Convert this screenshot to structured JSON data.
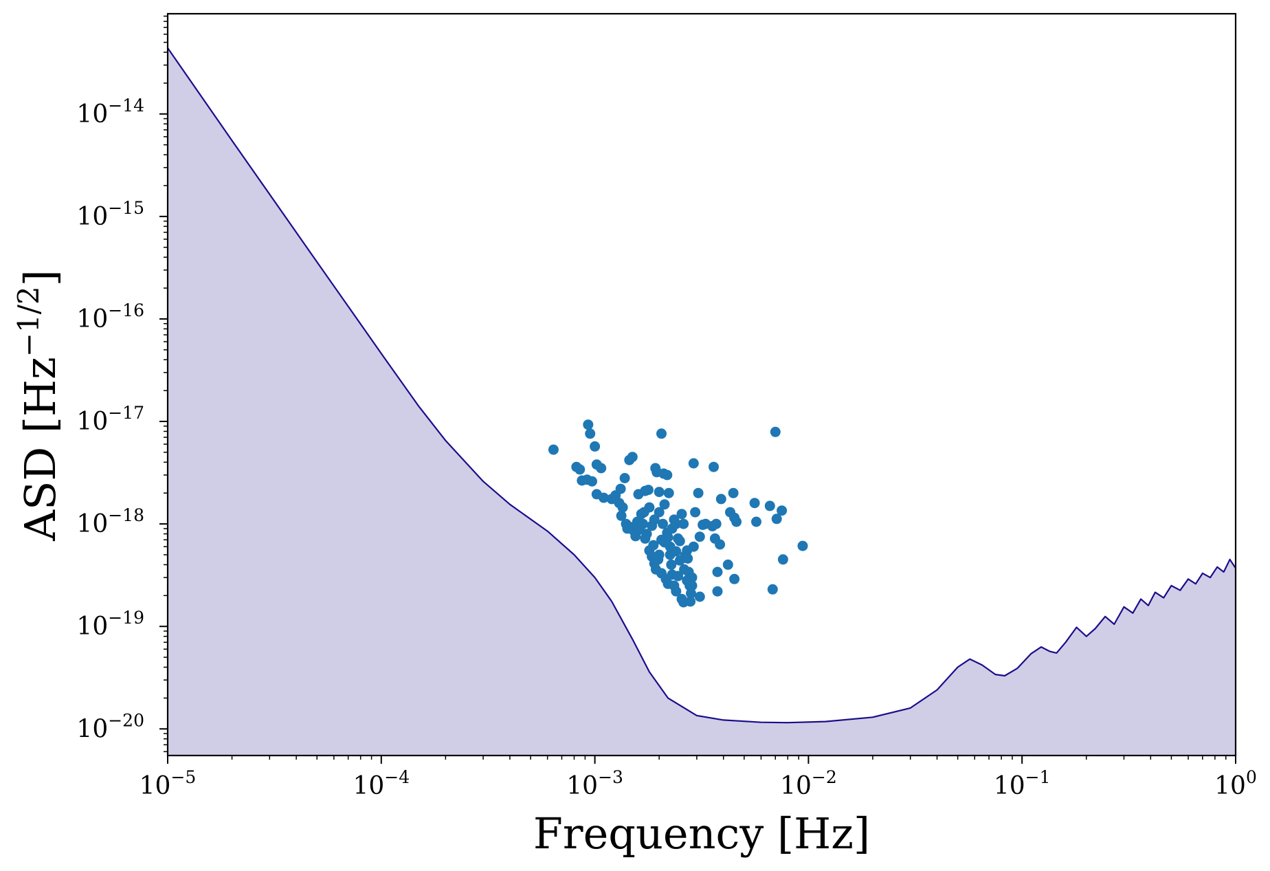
{
  "chart_data": {
    "type": "line+scatter",
    "xlabel": "Frequency [Hz]",
    "ylabel_base": "ASD [Hz",
    "ylabel_exp": "−1/2",
    "ylabel_close": "]",
    "xscale": "log",
    "yscale": "log",
    "xlim": [
      1e-05,
      1
    ],
    "ylim": [
      5.5e-21,
      9.5e-14
    ],
    "grid": false,
    "x_ticks": [
      {
        "base": "10",
        "exp": "−5"
      },
      {
        "base": "10",
        "exp": "−4"
      },
      {
        "base": "10",
        "exp": "−3"
      },
      {
        "base": "10",
        "exp": "−2"
      },
      {
        "base": "10",
        "exp": "−1"
      },
      {
        "base": "10",
        "exp": "0"
      }
    ],
    "y_ticks": [
      {
        "base": "10",
        "exp": "−20"
      },
      {
        "base": "10",
        "exp": "−19"
      },
      {
        "base": "10",
        "exp": "−18"
      },
      {
        "base": "10",
        "exp": "−17"
      },
      {
        "base": "10",
        "exp": "−16"
      },
      {
        "base": "10",
        "exp": "−15"
      },
      {
        "base": "10",
        "exp": "−14"
      }
    ],
    "curve": {
      "color": "#1a0d8c",
      "fill_color": "#d0cee6",
      "points": [
        [
          1e-05,
          4.4e-14
        ],
        [
          2e-05,
          5.5e-15
        ],
        [
          5e-05,
          3.6e-16
        ],
        [
          0.0001,
          4.6e-17
        ],
        [
          0.00015,
          1.4e-17
        ],
        [
          0.0002,
          6.5e-18
        ],
        [
          0.0003,
          2.6e-18
        ],
        [
          0.0004,
          1.55e-18
        ],
        [
          0.0006,
          8.5e-19
        ],
        [
          0.0008,
          5e-19
        ],
        [
          0.001,
          3e-19
        ],
        [
          0.0012,
          1.75e-19
        ],
        [
          0.0015,
          7.5e-20
        ],
        [
          0.0018,
          3.6e-20
        ],
        [
          0.0022,
          2e-20
        ],
        [
          0.003,
          1.35e-20
        ],
        [
          0.004,
          1.22e-20
        ],
        [
          0.006,
          1.16e-20
        ],
        [
          0.008,
          1.15e-20
        ],
        [
          0.012,
          1.18e-20
        ],
        [
          0.02,
          1.3e-20
        ],
        [
          0.03,
          1.6e-20
        ],
        [
          0.04,
          2.4e-20
        ],
        [
          0.05,
          4e-20
        ],
        [
          0.057,
          4.8e-20
        ],
        [
          0.065,
          4.2e-20
        ],
        [
          0.075,
          3.4e-20
        ],
        [
          0.083,
          3.3e-20
        ],
        [
          0.095,
          3.9e-20
        ],
        [
          0.11,
          5.4e-20
        ],
        [
          0.123,
          6.3e-20
        ],
        [
          0.135,
          5.7e-20
        ],
        [
          0.145,
          5.5e-20
        ],
        [
          0.16,
          7e-20
        ],
        [
          0.18,
          9.8e-20
        ],
        [
          0.2,
          8e-20
        ],
        [
          0.22,
          9.5e-20
        ],
        [
          0.245,
          1.25e-19
        ],
        [
          0.27,
          1.05e-19
        ],
        [
          0.3,
          1.55e-19
        ],
        [
          0.33,
          1.35e-19
        ],
        [
          0.36,
          1.85e-19
        ],
        [
          0.39,
          1.6e-19
        ],
        [
          0.42,
          2.15e-19
        ],
        [
          0.46,
          1.9e-19
        ],
        [
          0.5,
          2.5e-19
        ],
        [
          0.55,
          2.25e-19
        ],
        [
          0.6,
          2.9e-19
        ],
        [
          0.65,
          2.6e-19
        ],
        [
          0.7,
          3.3e-19
        ],
        [
          0.76,
          3e-19
        ],
        [
          0.82,
          3.8e-19
        ],
        [
          0.88,
          3.4e-19
        ],
        [
          0.94,
          4.5e-19
        ],
        [
          1.0,
          3.7e-19
        ]
      ]
    },
    "scatter": {
      "color": "#1f77b4",
      "points": [
        [
          0.00064,
          5.3e-18
        ],
        [
          0.00093,
          9.3e-18
        ],
        [
          0.00095,
          7.6e-18
        ],
        [
          0.001,
          5.7e-18
        ],
        [
          0.00082,
          3.6e-18
        ],
        [
          0.00085,
          3.4e-18
        ],
        [
          0.00102,
          3.8e-18
        ],
        [
          0.00107,
          3.5e-18
        ],
        [
          0.00087,
          2.65e-18
        ],
        [
          0.00092,
          2.7e-18
        ],
        [
          0.00097,
          2.6e-18
        ],
        [
          0.00102,
          1.95e-18
        ],
        [
          0.0011,
          1.8e-18
        ],
        [
          0.00125,
          1.9e-18
        ],
        [
          0.00132,
          2.2e-18
        ],
        [
          0.00138,
          2.8e-18
        ],
        [
          0.00145,
          4.2e-18
        ],
        [
          0.0015,
          4.5e-18
        ],
        [
          0.0013,
          1.6e-18
        ],
        [
          0.00135,
          1.45e-18
        ],
        [
          0.00133,
          1.2e-18
        ],
        [
          0.0014,
          1e-18
        ],
        [
          0.00148,
          9.3e-19
        ],
        [
          0.00152,
          8.6e-19
        ],
        [
          0.00155,
          7.6e-19
        ],
        [
          0.00162,
          8.8e-19
        ],
        [
          0.00168,
          1e-18
        ],
        [
          0.00172,
          2.1e-18
        ],
        [
          0.00178,
          2.15e-18
        ],
        [
          0.00165,
          1.25e-18
        ],
        [
          0.0018,
          1.45e-18
        ],
        [
          0.00185,
          9.6e-19
        ],
        [
          0.0019,
          1.1e-18
        ],
        [
          0.00192,
          3.5e-18
        ],
        [
          0.00195,
          3.2e-18
        ],
        [
          0.00205,
          7.6e-18
        ],
        [
          0.0021,
          3.1e-18
        ],
        [
          0.00218,
          3e-18
        ],
        [
          0.002,
          2.05e-18
        ],
        [
          0.00222,
          2e-18
        ],
        [
          0.002,
          1.3e-18
        ],
        [
          0.00212,
          1.55e-18
        ],
        [
          0.00208,
          1e-18
        ],
        [
          0.00172,
          7.2e-19
        ],
        [
          0.0018,
          5.5e-19
        ],
        [
          0.00185,
          4.8e-19
        ],
        [
          0.0019,
          4.1e-19
        ],
        [
          0.00193,
          3.6e-19
        ],
        [
          0.002,
          5e-19
        ],
        [
          0.00205,
          7e-19
        ],
        [
          0.00212,
          6.6e-19
        ],
        [
          0.0022,
          7.4e-19
        ],
        [
          0.00225,
          5e-19
        ],
        [
          0.0023,
          9e-19
        ],
        [
          0.00235,
          1.1e-18
        ],
        [
          0.0024,
          1e-18
        ],
        [
          0.00245,
          7.2e-19
        ],
        [
          0.0025,
          6.8e-19
        ],
        [
          0.00255,
          1.25e-18
        ],
        [
          0.00205,
          3.3e-19
        ],
        [
          0.00215,
          2.9e-19
        ],
        [
          0.0022,
          2.6e-19
        ],
        [
          0.0023,
          3.2e-19
        ],
        [
          0.00235,
          2.5e-19
        ],
        [
          0.0024,
          2.2e-19
        ],
        [
          0.00245,
          3.1e-19
        ],
        [
          0.0025,
          4.4e-19
        ],
        [
          0.00255,
          1.85e-19
        ],
        [
          0.0026,
          1.72e-19
        ],
        [
          0.00265,
          4.9e-19
        ],
        [
          0.0027,
          5.5e-19
        ],
        [
          0.00275,
          3.4e-19
        ],
        [
          0.00278,
          2.5e-19
        ],
        [
          0.0028,
          1.75e-19
        ],
        [
          0.00282,
          2.1e-19
        ],
        [
          0.00285,
          3e-19
        ],
        [
          0.0029,
          6e-19
        ],
        [
          0.00295,
          1.3e-18
        ],
        [
          0.0029,
          3.9e-18
        ],
        [
          0.00305,
          2e-18
        ],
        [
          0.0031,
          7.5e-19
        ],
        [
          0.0032,
          9.8e-19
        ],
        [
          0.0031,
          1.95e-19
        ],
        [
          0.00355,
          9.5e-19
        ],
        [
          0.0036,
          3.6e-18
        ],
        [
          0.00365,
          7.2e-19
        ],
        [
          0.0037,
          1e-18
        ],
        [
          0.00375,
          3.4e-19
        ],
        [
          0.00385,
          6.3e-19
        ],
        [
          0.00375,
          2.2e-19
        ],
        [
          0.0039,
          1.75e-18
        ],
        [
          0.0042,
          4e-19
        ],
        [
          0.0043,
          1.3e-18
        ],
        [
          0.00445,
          2e-18
        ],
        [
          0.0045,
          1.15e-18
        ],
        [
          0.0046,
          1.05e-18
        ],
        [
          0.0045,
          2.9e-19
        ],
        [
          0.0056,
          1.6e-18
        ],
        [
          0.0057,
          1.05e-18
        ],
        [
          0.0066,
          1.5e-18
        ],
        [
          0.0068,
          2.3e-19
        ],
        [
          0.007,
          7.9e-18
        ],
        [
          0.0071,
          1.12e-18
        ],
        [
          0.0075,
          1.35e-18
        ],
        [
          0.0076,
          4.5e-19
        ],
        [
          0.0094,
          6.1e-19
        ],
        [
          0.0016,
          1.95e-18
        ],
        [
          0.0012,
          1.75e-18
        ],
        [
          0.00142,
          9e-19
        ],
        [
          0.00158,
          1.05e-18
        ],
        [
          0.00175,
          8e-19
        ],
        [
          0.00188,
          6.2e-19
        ],
        [
          0.00198,
          4.5e-19
        ],
        [
          0.00228,
          4e-19
        ],
        [
          0.00262,
          3.6e-19
        ],
        [
          0.0027,
          2.8e-19
        ],
        [
          0.0024,
          5.4e-19
        ],
        [
          0.00218,
          8.2e-19
        ],
        [
          0.00225,
          6e-19
        ],
        [
          0.0026,
          1e-18
        ],
        [
          0.00272,
          4.6e-19
        ],
        [
          0.0033,
          1e-18
        ],
        [
          0.00285,
          2.5e-19
        ],
        [
          0.0017,
          1.3e-18
        ]
      ]
    }
  }
}
